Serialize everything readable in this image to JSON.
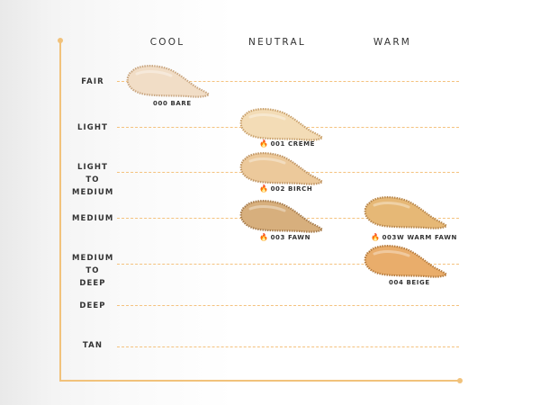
{
  "columns": {
    "cool": "COOL",
    "neutral": "NEUTRAL",
    "warm": "WARM"
  },
  "rows": {
    "fair": "FAIR",
    "light": "LIGHT",
    "light_to_medium_1": "LIGHT TO",
    "light_to_medium_2": "MEDIUM",
    "medium": "MEDIUM",
    "medium_to_deep_1": "MEDIUM",
    "medium_to_deep_2": "TO DEEP",
    "deep": "DEEP",
    "tan": "TAN"
  },
  "shades": {
    "bare": {
      "label": "000 BARE",
      "color": "#f1ddc6",
      "edge": "#c9a680",
      "flame": false
    },
    "creme": {
      "label": "001 CREME",
      "color": "#f3dcb6",
      "edge": "#c9a06a",
      "flame": true
    },
    "birch": {
      "label": "002 BIRCH",
      "color": "#ecc99b",
      "edge": "#c09563",
      "flame": true
    },
    "fawn": {
      "label": "003 FAWN",
      "color": "#d7af7d",
      "edge": "#a77c4c",
      "flame": true
    },
    "warm_fawn": {
      "label": "003W WARM FAWN",
      "color": "#e6b876",
      "edge": "#b8864a",
      "flame": true
    },
    "beige": {
      "label": "004 BEIGE",
      "color": "#e9ad6b",
      "edge": "#b67b3c",
      "flame": false
    }
  },
  "icons": {
    "flame": "flame-icon"
  },
  "colors": {
    "axis": "#f1c27b",
    "dash": "#f4c27e",
    "flame": "#e2462c"
  }
}
